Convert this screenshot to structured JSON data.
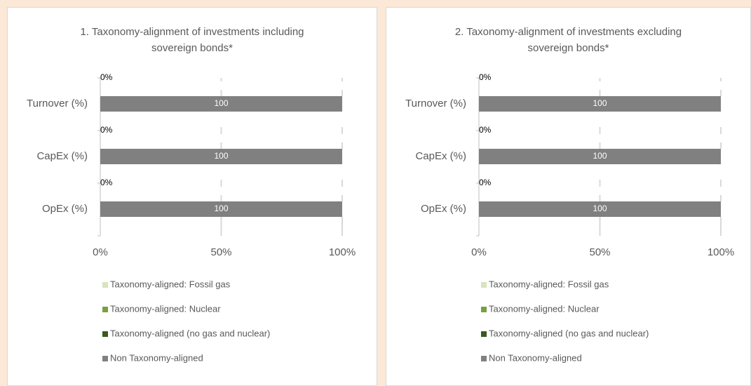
{
  "chart_data": [
    {
      "type": "bar",
      "orientation": "horizontal",
      "stacked": true,
      "title": "1. Taxonomy-alignment of investments including sovereign bonds*",
      "categories": [
        "Turnover (%)",
        "CapEx (%)",
        "OpEx (%)"
      ],
      "series": [
        {
          "name": "Taxonomy-aligned: Fossil gas",
          "color": "#d8e4bc",
          "values": [
            0,
            0,
            0
          ]
        },
        {
          "name": "Taxonomy-aligned: Nuclear",
          "color": "#77a040",
          "values": [
            0,
            0,
            0
          ]
        },
        {
          "name": "Taxonomy-aligned (no gas and nuclear)",
          "color": "#3a5a1e",
          "values": [
            0,
            0,
            0
          ],
          "value_labels": [
            "0%",
            "0%",
            "0%"
          ]
        },
        {
          "name": "Non Taxonomy-aligned",
          "color": "#808080",
          "values": [
            100,
            100,
            100
          ]
        }
      ],
      "xlim": [
        0,
        100
      ],
      "xticks": [
        {
          "value": 0,
          "label": "0%"
        },
        {
          "value": 50,
          "label": "50%"
        },
        {
          "value": 100,
          "label": "100%"
        }
      ],
      "grid": true,
      "legend": "bottom"
    },
    {
      "type": "bar",
      "orientation": "horizontal",
      "stacked": true,
      "title": "2. Taxonomy-alignment of investments excluding sovereign bonds*",
      "categories": [
        "Turnover (%)",
        "CapEx (%)",
        "OpEx (%)"
      ],
      "series": [
        {
          "name": "Taxonomy-aligned: Fossil gas",
          "color": "#d8e4bc",
          "values": [
            0,
            0,
            0
          ]
        },
        {
          "name": "Taxonomy-aligned: Nuclear",
          "color": "#77a040",
          "values": [
            0,
            0,
            0
          ]
        },
        {
          "name": "Taxonomy-aligned (no gas and nuclear)",
          "color": "#3a5a1e",
          "values": [
            0,
            0,
            0
          ],
          "value_labels": [
            "0%",
            "0%",
            "0%"
          ]
        },
        {
          "name": "Non Taxonomy-aligned",
          "color": "#808080",
          "values": [
            100,
            100,
            100
          ]
        }
      ],
      "xlim": [
        0,
        100
      ],
      "xticks": [
        {
          "value": 0,
          "label": "0%"
        },
        {
          "value": 50,
          "label": "50%"
        },
        {
          "value": 100,
          "label": "100%"
        }
      ],
      "grid": true,
      "legend": "bottom"
    }
  ]
}
